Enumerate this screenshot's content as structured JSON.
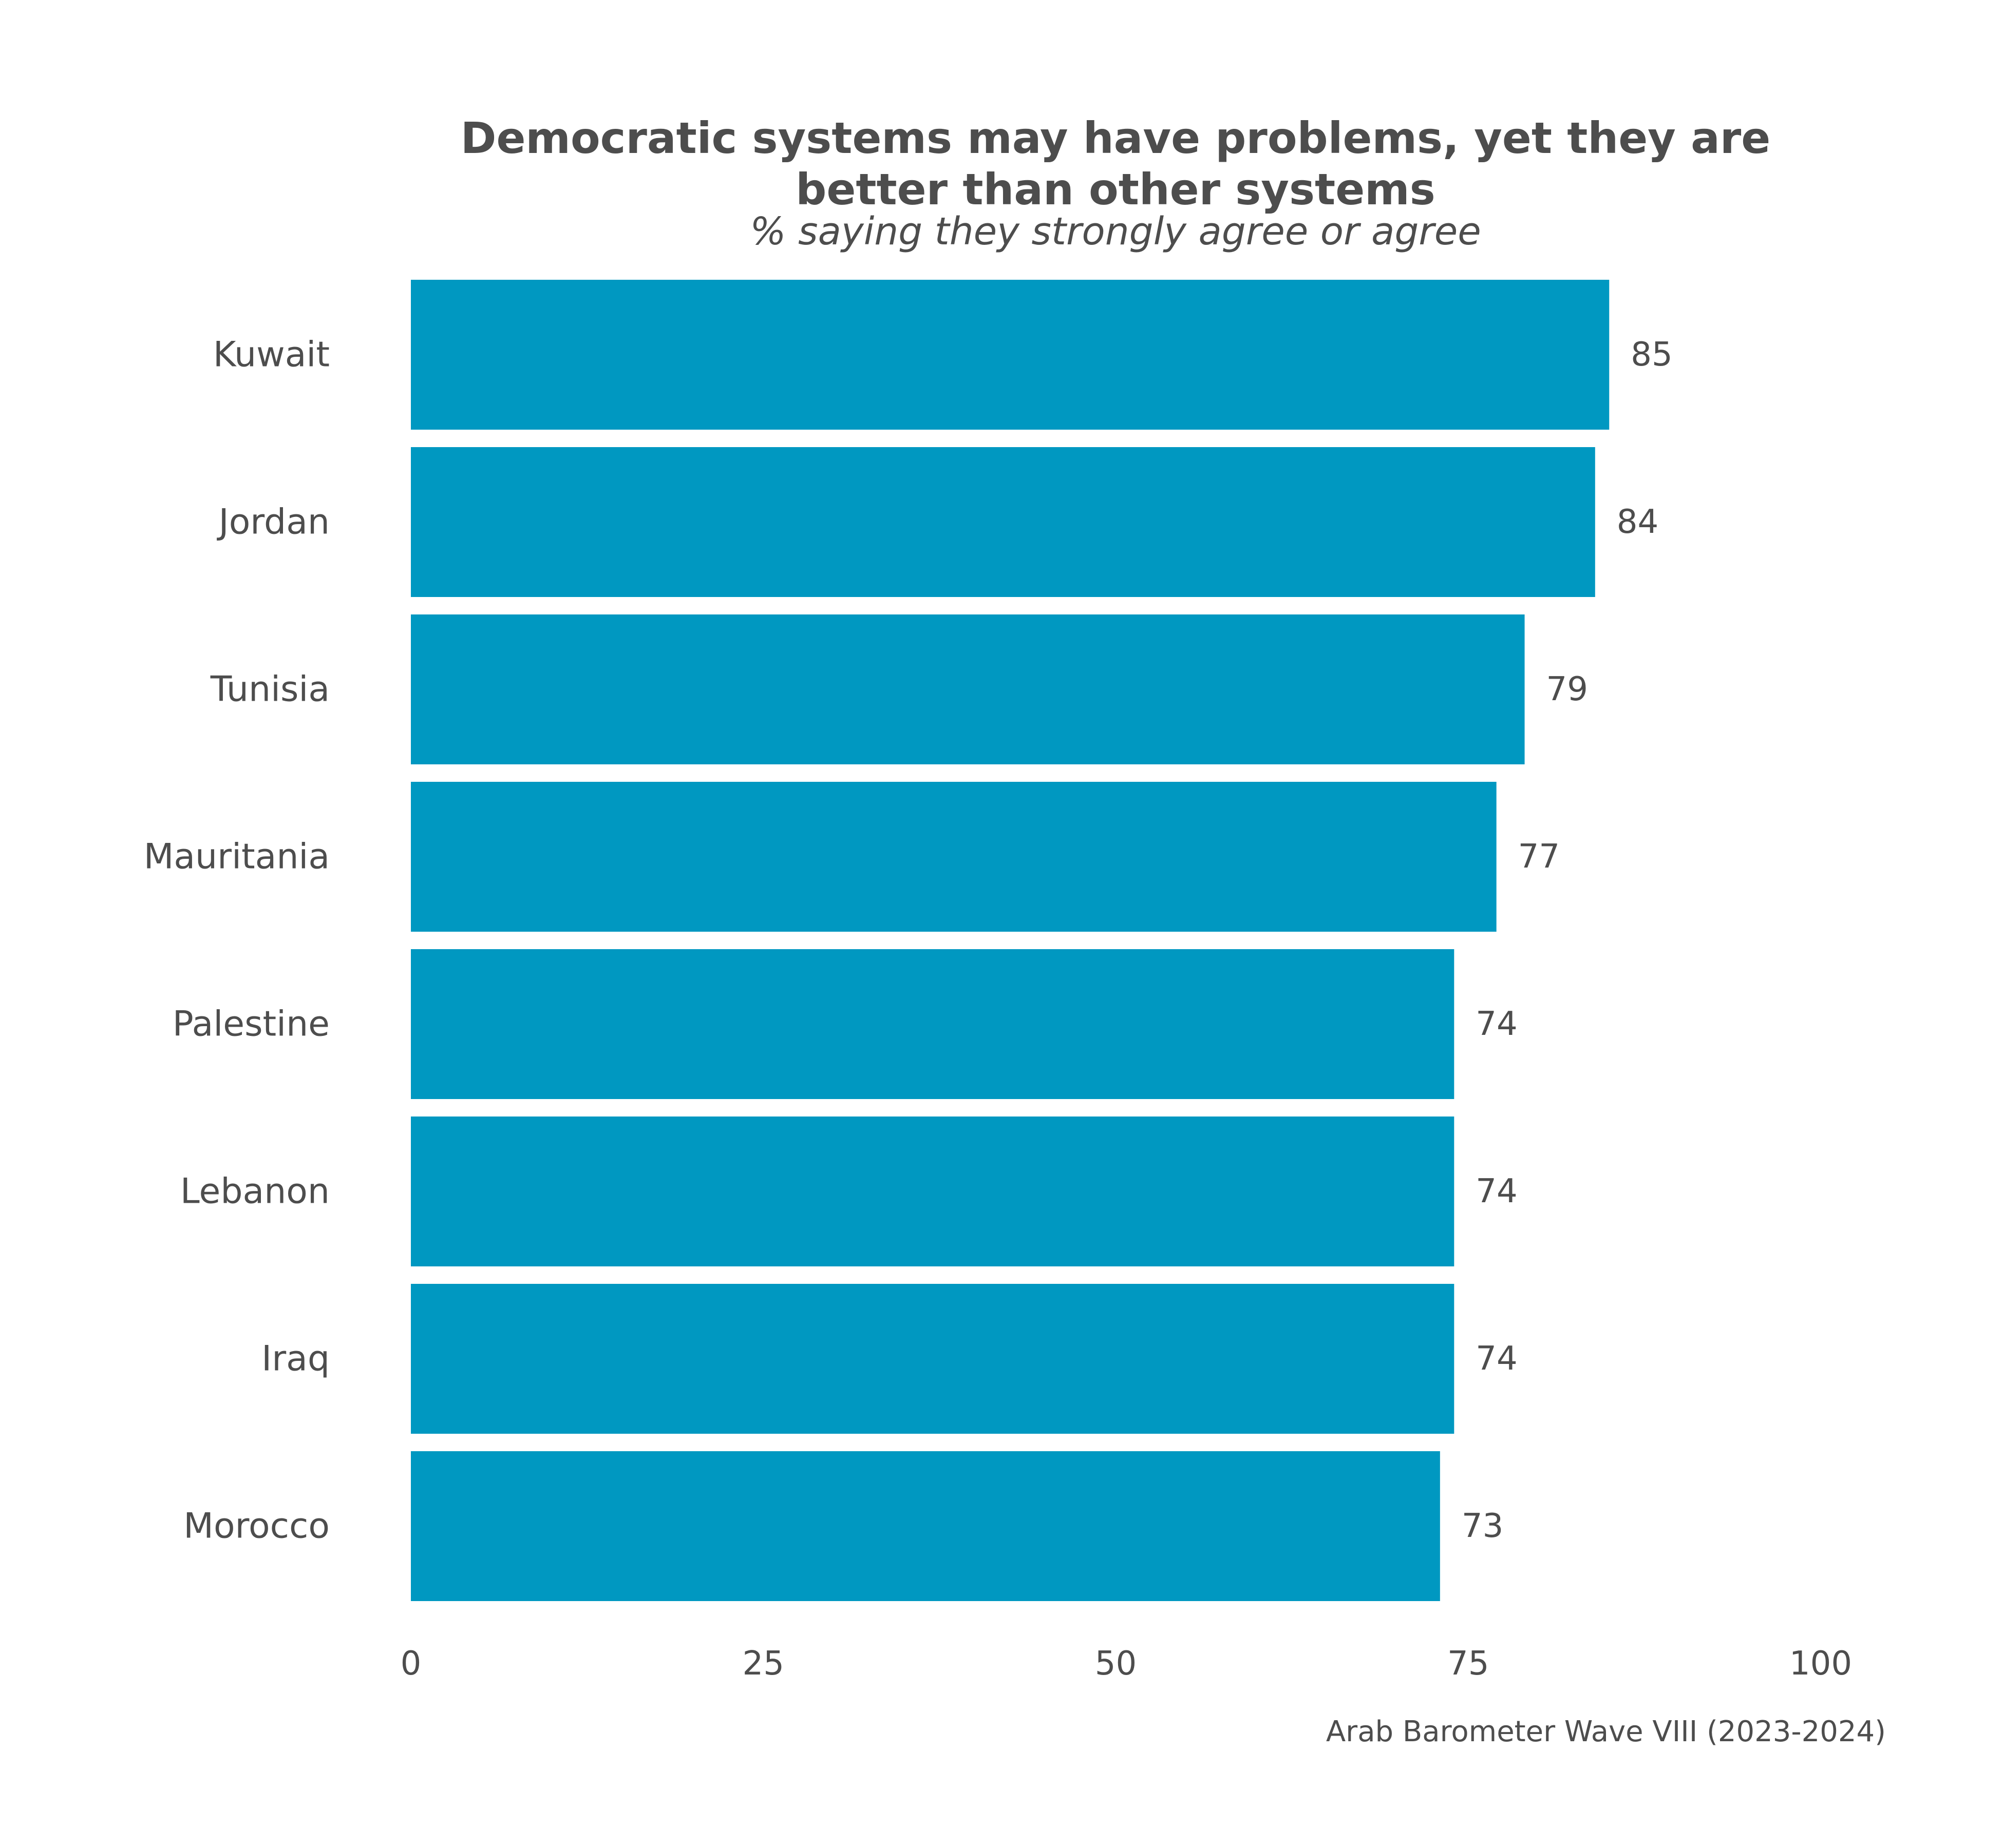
{
  "chart_data": {
    "type": "bar",
    "orientation": "horizontal",
    "title_lines": [
      "Democratic systems may have problems, yet they are",
      "better than other systems"
    ],
    "subtitle": "% saying they strongly agree or agree",
    "caption": "Arab Barometer Wave VIII (2023-2024)",
    "categories": [
      "Kuwait",
      "Jordan",
      "Tunisia",
      "Mauritania",
      "Palestine",
      "Lebanon",
      "Iraq",
      "Morocco"
    ],
    "values": [
      85,
      84,
      79,
      77,
      74,
      74,
      74,
      73
    ],
    "xlim": [
      0,
      100
    ],
    "xticks": [
      0,
      25,
      50,
      75,
      100
    ],
    "bar_color": "#0098c1",
    "grid": false,
    "legend": "none"
  }
}
